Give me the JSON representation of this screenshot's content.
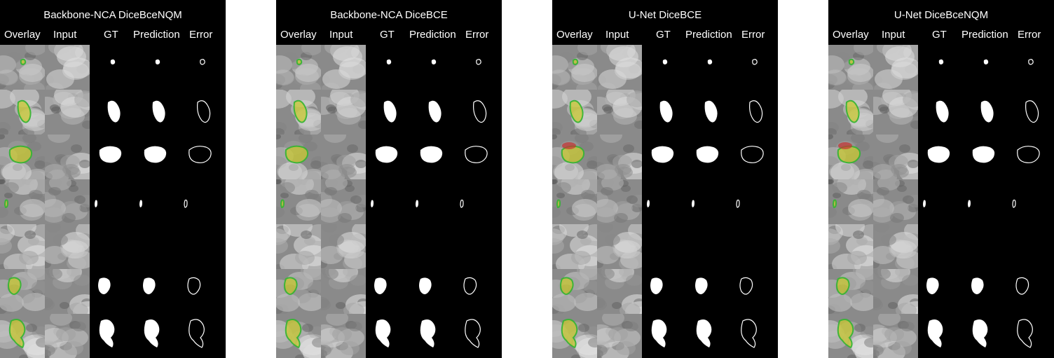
{
  "figure": {
    "columns": [
      "Overlay",
      "Input",
      "GT",
      "Prediction",
      "Error"
    ],
    "panels": [
      {
        "title": "Backbone-NCA DiceBceNQM"
      },
      {
        "title": "Backbone-NCA DiceBCE"
      },
      {
        "title": "U-Net DiceBCE"
      },
      {
        "title": "U-Net DiceBceNQM"
      }
    ],
    "legend_colors": {
      "overlay_true_positive": "#c8c832",
      "overlay_false_negative": "#32b432",
      "overlay_false_positive": "#c83232",
      "background": "#000000",
      "mask": "#ffffff"
    }
  }
}
